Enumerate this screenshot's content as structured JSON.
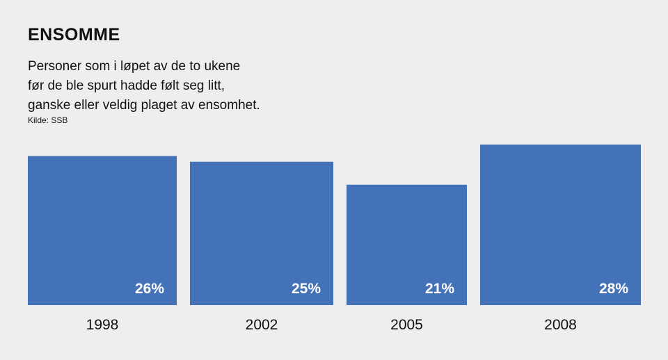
{
  "header": {
    "title": "ENSOMME",
    "subtitle_lines": [
      "Personer som i løpet av de to ukene",
      "før de ble spurt hadde følt seg litt,",
      "ganske eller veldig plaget av ensomhet."
    ],
    "source": "Kilde: SSB"
  },
  "chart_data": {
    "type": "bar",
    "title": "ENSOMME",
    "categories": [
      "1998",
      "2002",
      "2005",
      "2008"
    ],
    "values": [
      26,
      25,
      21,
      28
    ],
    "value_labels": [
      "26%",
      "25%",
      "21%",
      "28%"
    ],
    "unit": "%",
    "xlabel": "",
    "ylabel": "",
    "ylim": [
      0,
      28
    ],
    "grid": false,
    "legend": "none",
    "bar_color": "#4472b8"
  }
}
